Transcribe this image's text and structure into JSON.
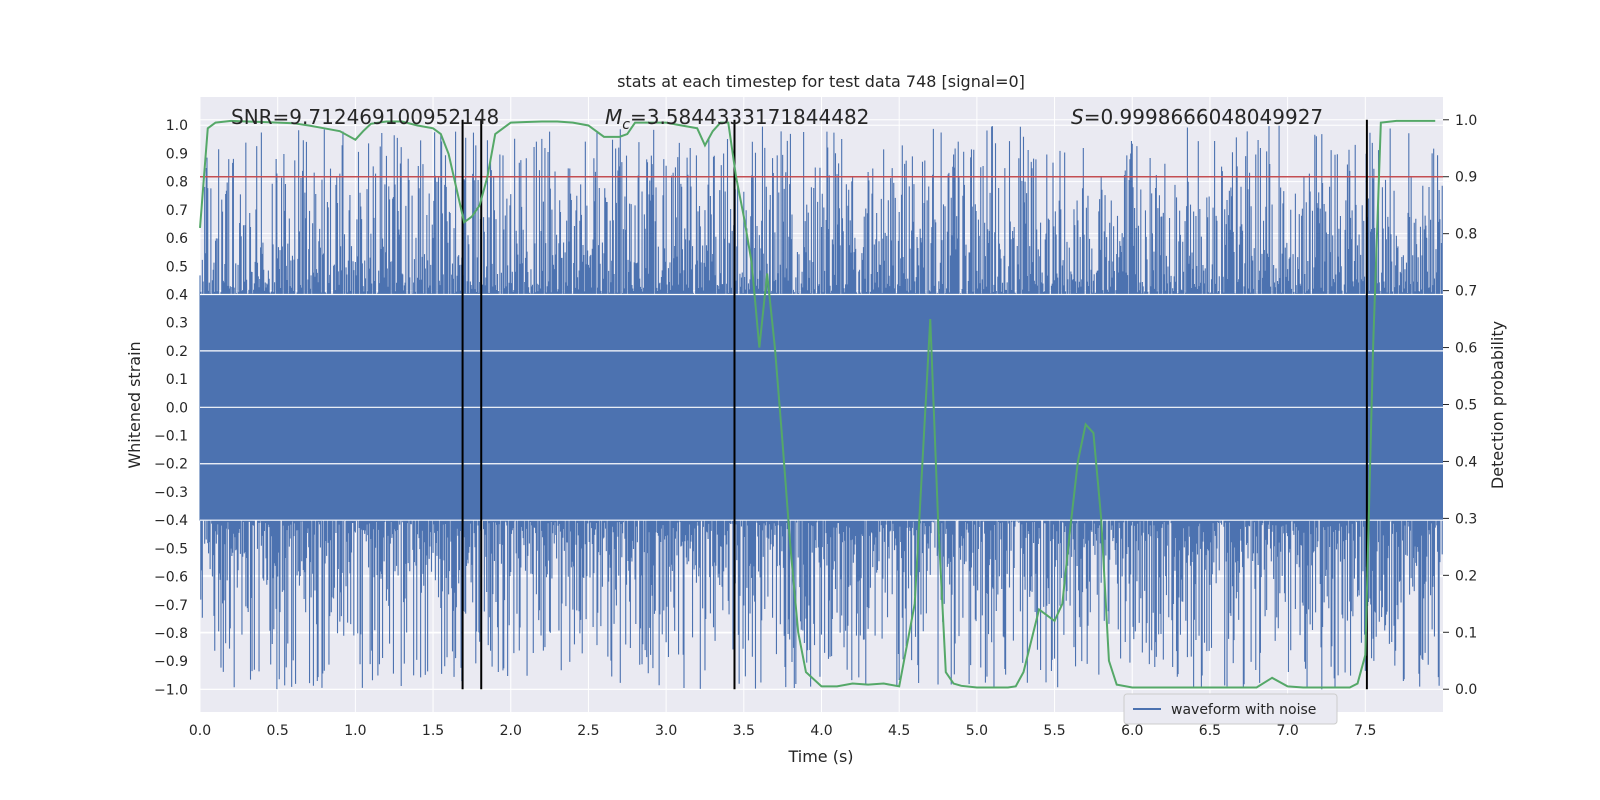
{
  "chart_data": {
    "type": "line",
    "title": "stats at each timestep for test data 748 [signal=0]",
    "xlabel": "Time (s)",
    "ylabel_left": "Whitened strain",
    "ylabel_right": "Detection probability",
    "xlim": [
      0.0,
      8.0
    ],
    "ylim_left": [
      -1.08,
      1.1
    ],
    "ylim_right": [
      -0.04,
      1.04
    ],
    "grid": true,
    "legend_placement": "lower-right",
    "xticks": [
      "0.0",
      "0.5",
      "1.0",
      "1.5",
      "2.0",
      "2.5",
      "3.0",
      "3.5",
      "4.0",
      "4.5",
      "5.0",
      "5.5",
      "6.0",
      "6.5",
      "7.0",
      "7.5"
    ],
    "yticks_left": [
      "1.0",
      "0.9",
      "0.8",
      "0.7",
      "0.6",
      "0.5",
      "0.4",
      "0.3",
      "0.2",
      "0.1",
      "0.0",
      "−0.1",
      "−0.2",
      "−0.3",
      "−0.4",
      "−0.5",
      "−0.6",
      "−0.7",
      "−0.8",
      "−0.9",
      "−1.0"
    ],
    "yticks_right": [
      "1.0",
      "0.9",
      "0.8",
      "0.7",
      "0.6",
      "0.5",
      "0.4",
      "0.3",
      "0.2",
      "0.1",
      "0.0"
    ],
    "annotations": {
      "snr": "SNR=9.712469100952148",
      "mc_symbol": "M",
      "mc_sub": "c",
      "mc_value": "=3.5844333171844482",
      "s_symbol": "S",
      "s_value": "=0.9998666048049927"
    },
    "series": [
      {
        "name": "waveform with noise",
        "axis": "left",
        "color": "#4c72b0",
        "style": "dense-noise",
        "core_amplitude": 0.4,
        "peak_amplitude_range": [
          0.5,
          1.0
        ]
      },
      {
        "axis": "right",
        "color": "#55a868",
        "x": [
          0.0,
          0.05,
          0.1,
          0.2,
          0.3,
          0.4,
          0.5,
          0.6,
          0.7,
          0.8,
          0.9,
          1.0,
          1.05,
          1.1,
          1.2,
          1.3,
          1.4,
          1.5,
          1.55,
          1.6,
          1.65,
          1.7,
          1.75,
          1.8,
          1.85,
          1.9,
          2.0,
          2.1,
          2.2,
          2.3,
          2.4,
          2.5,
          2.6,
          2.7,
          2.75,
          2.8,
          2.9,
          3.0,
          3.1,
          3.2,
          3.25,
          3.3,
          3.35,
          3.4,
          3.45,
          3.5,
          3.55,
          3.6,
          3.65,
          3.7,
          3.75,
          3.8,
          3.85,
          3.9,
          4.0,
          4.1,
          4.2,
          4.3,
          4.4,
          4.5,
          4.6,
          4.65,
          4.7,
          4.75,
          4.8,
          4.85,
          4.9,
          5.0,
          5.1,
          5.2,
          5.25,
          5.3,
          5.4,
          5.45,
          5.5,
          5.55,
          5.6,
          5.65,
          5.7,
          5.75,
          5.8,
          5.85,
          5.9,
          6.0,
          6.1,
          6.2,
          6.3,
          6.4,
          6.5,
          6.6,
          6.7,
          6.8,
          6.9,
          7.0,
          7.1,
          7.2,
          7.3,
          7.4,
          7.45,
          7.5,
          7.55,
          7.6,
          7.7,
          7.8,
          7.9,
          7.95
        ],
        "values": [
          0.81,
          0.985,
          0.995,
          0.998,
          0.997,
          0.996,
          0.995,
          0.994,
          0.99,
          0.985,
          0.98,
          0.965,
          0.98,
          0.993,
          0.997,
          0.997,
          0.99,
          0.985,
          0.975,
          0.94,
          0.88,
          0.82,
          0.83,
          0.85,
          0.9,
          0.975,
          0.995,
          0.996,
          0.997,
          0.997,
          0.995,
          0.99,
          0.97,
          0.97,
          0.975,
          0.995,
          0.995,
          0.995,
          0.99,
          0.985,
          0.955,
          0.98,
          0.995,
          0.995,
          0.9,
          0.83,
          0.75,
          0.6,
          0.73,
          0.6,
          0.43,
          0.25,
          0.1,
          0.03,
          0.005,
          0.005,
          0.01,
          0.008,
          0.01,
          0.005,
          0.15,
          0.4,
          0.65,
          0.3,
          0.03,
          0.01,
          0.006,
          0.003,
          0.003,
          0.003,
          0.005,
          0.03,
          0.14,
          0.13,
          0.12,
          0.15,
          0.28,
          0.4,
          0.465,
          0.45,
          0.3,
          0.05,
          0.008,
          0.003,
          0.003,
          0.003,
          0.003,
          0.003,
          0.003,
          0.003,
          0.003,
          0.003,
          0.02,
          0.005,
          0.003,
          0.003,
          0.003,
          0.003,
          0.01,
          0.06,
          0.6,
          0.995,
          0.998,
          0.998,
          0.998,
          0.998
        ]
      }
    ],
    "hlines_right": [
      {
        "y": 0.9,
        "color": "#c44e52"
      }
    ],
    "vlines": [
      1.69,
      1.81,
      3.44,
      7.51
    ]
  }
}
